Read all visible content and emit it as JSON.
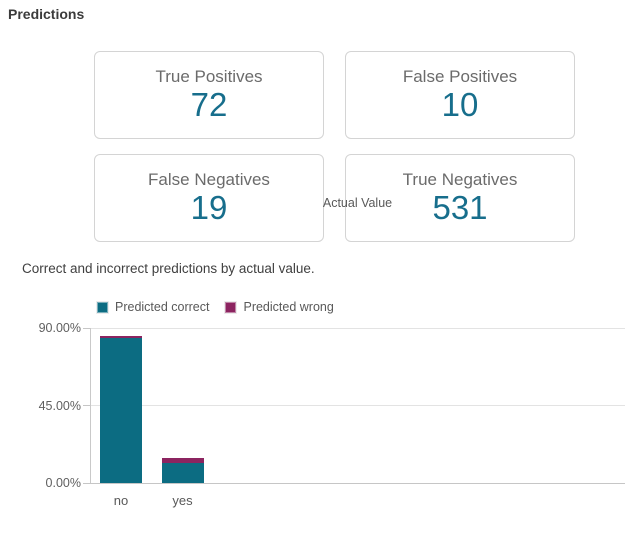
{
  "page": {
    "title": "Predictions"
  },
  "cards": [
    {
      "label": "True Positives",
      "value": "72"
    },
    {
      "label": "False Positives",
      "value": "10"
    },
    {
      "label": "False Negatives",
      "value": "19"
    },
    {
      "label": "True Negatives",
      "value": "531"
    }
  ],
  "colors": {
    "value_text": "#176e8c",
    "predicted_correct": "#0c6c82",
    "predicted_wrong": "#8c2460",
    "card_border": "#d4d4d4",
    "gridline": "#e3e3e3",
    "axis_line": "#c6c6c6"
  },
  "chart_data": {
    "type": "bar",
    "stacked": true,
    "title": "Correct and incorrect predictions by actual value.",
    "xlabel": "Actual Value",
    "ylabel": "",
    "categories": [
      "no",
      "yes"
    ],
    "series": [
      {
        "name": "Predicted correct",
        "color": "#0c6c82",
        "values": [
          84.02,
          11.39
        ]
      },
      {
        "name": "Predicted wrong",
        "color": "#8c2460",
        "values": [
          1.58,
          3.01
        ]
      }
    ],
    "ylim": [
      0,
      90
    ],
    "yticks": [
      {
        "label": "0.00%",
        "value": 0
      },
      {
        "label": "45.00%",
        "value": 45
      },
      {
        "label": "90.00%",
        "value": 90
      }
    ],
    "grid": true,
    "legend_position": "top"
  }
}
